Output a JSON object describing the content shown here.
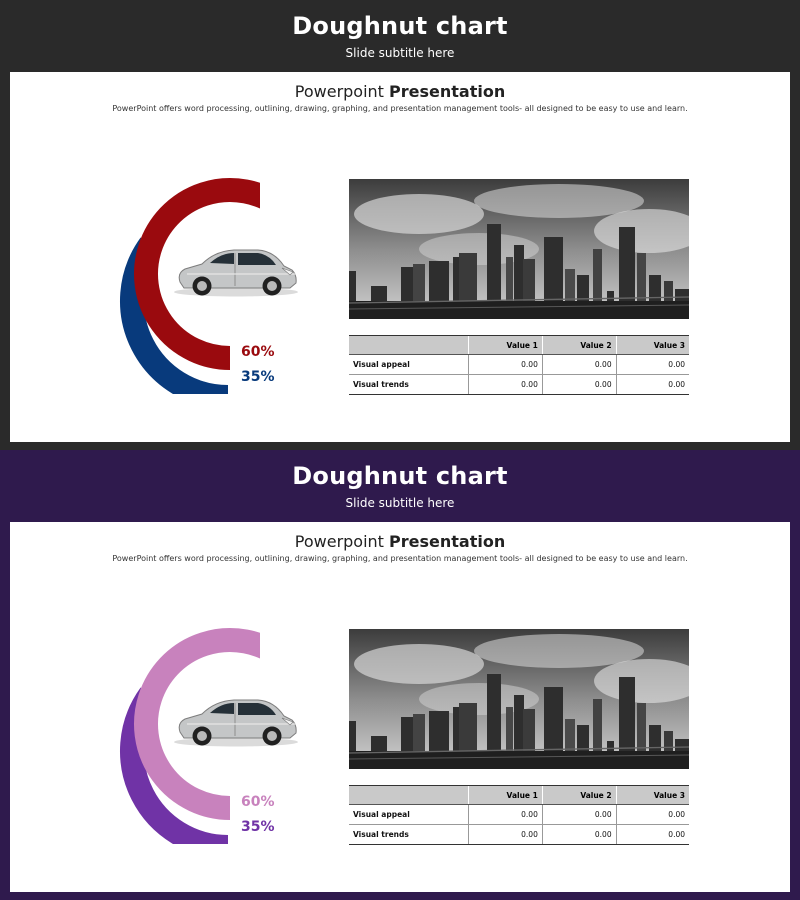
{
  "slides": [
    {
      "theme": {
        "bg": "#2a2a2a",
        "outer": "#9a0a0e",
        "inner": "#083a7c"
      },
      "title": "Doughnut chart",
      "subtitle": "Slide subtitle here",
      "heading_light": "Powerpoint ",
      "heading_bold": "Presentation",
      "description": "PowerPoint offers word processing, outlining, drawing, graphing, and presentation management tools- all designed to be easy to use and learn.",
      "chart_data": {
        "type": "pie",
        "series": [
          {
            "label": "60%",
            "value": 60,
            "color": "#9a0a0e"
          },
          {
            "label": "35%",
            "value": 35,
            "color": "#083a7c"
          }
        ]
      },
      "table": {
        "headers": [
          "",
          "Value 1",
          "Value 2",
          "Value 3"
        ],
        "rows": [
          [
            "Visual appeal",
            "0.00",
            "0.00",
            "0.00"
          ],
          [
            "Visual trends",
            "0.00",
            "0.00",
            "0.00"
          ]
        ]
      }
    },
    {
      "theme": {
        "bg": "#2f1a4d",
        "outer": "#c882bd",
        "inner": "#7033a6"
      },
      "title": "Doughnut chart",
      "subtitle": "Slide subtitle here",
      "heading_light": "Powerpoint ",
      "heading_bold": "Presentation",
      "description": "PowerPoint offers word processing, outlining, drawing, graphing, and presentation management tools- all designed to be easy to use and learn.",
      "chart_data": {
        "type": "pie",
        "series": [
          {
            "label": "60%",
            "value": 60,
            "color": "#c882bd"
          },
          {
            "label": "35%",
            "value": 35,
            "color": "#7033a6"
          }
        ]
      },
      "table": {
        "headers": [
          "",
          "Value 1",
          "Value 2",
          "Value 3"
        ],
        "rows": [
          [
            "Visual appeal",
            "0.00",
            "0.00",
            "0.00"
          ],
          [
            "Visual trends",
            "0.00",
            "0.00",
            "0.00"
          ]
        ]
      }
    }
  ]
}
